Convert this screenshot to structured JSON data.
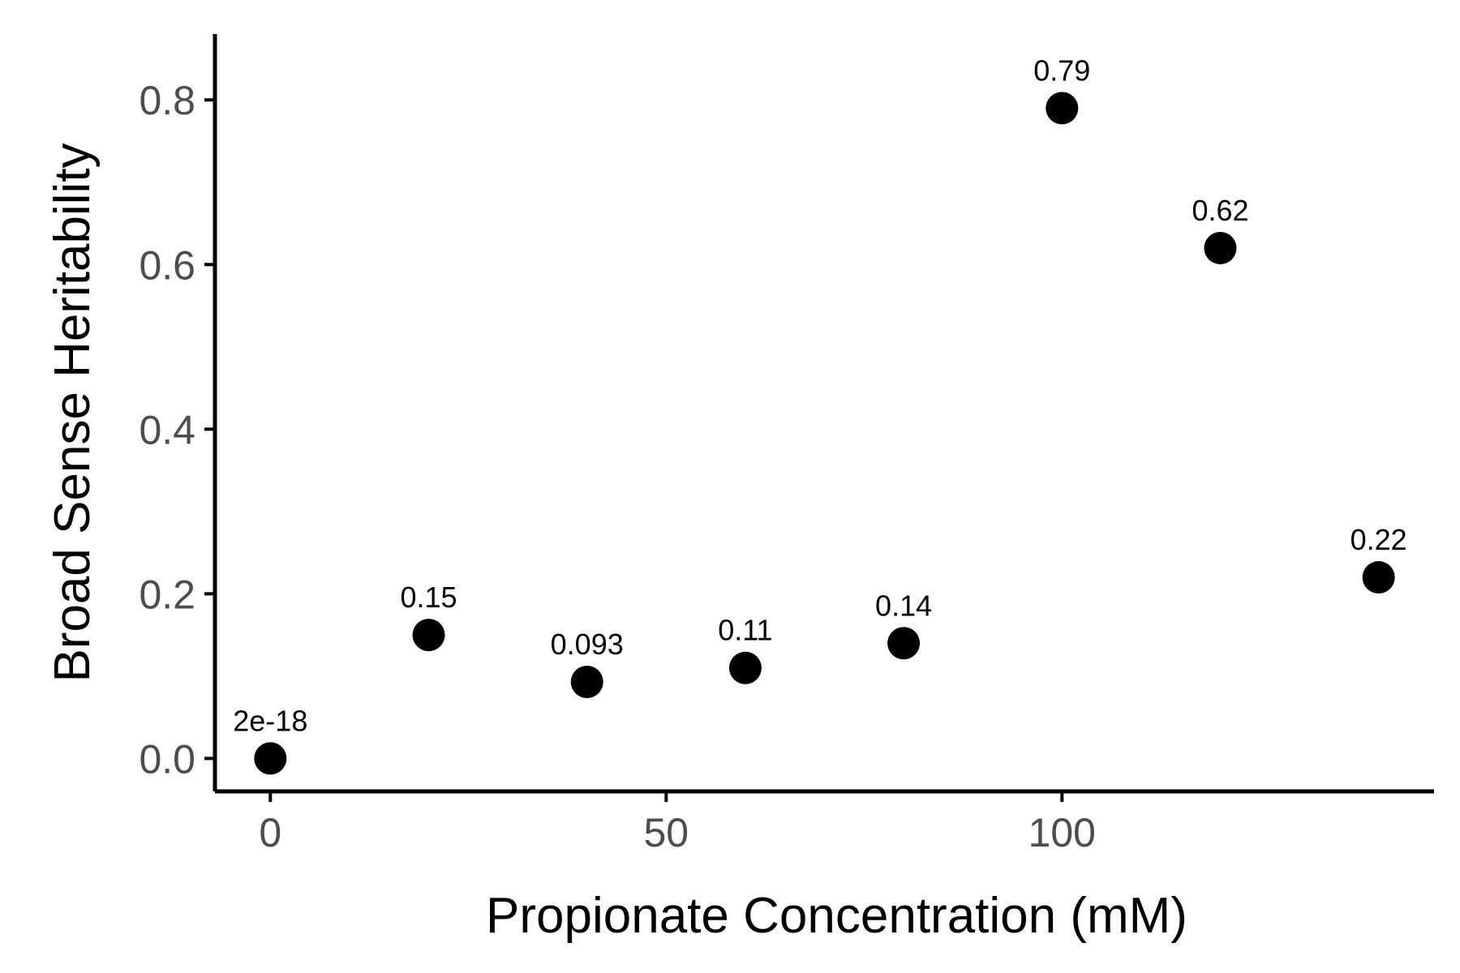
{
  "chart_data": {
    "type": "scatter",
    "title": "",
    "xlabel": "Propionate Concentration (mM)",
    "ylabel": "Broad Sense Heritability",
    "xlim": [
      -7,
      147
    ],
    "ylim": [
      -0.04,
      0.88
    ],
    "xticks": [
      0,
      50,
      100
    ],
    "xtick_labels": [
      "0",
      "50",
      "100"
    ],
    "yticks": [
      0.0,
      0.2,
      0.4,
      0.6,
      0.8
    ],
    "ytick_labels": [
      "0.0",
      "0.2",
      "0.4",
      "0.6",
      "0.8"
    ],
    "grid": false,
    "legend": "none",
    "point_color": "#000000",
    "points": [
      {
        "x": 0,
        "y": 0.0,
        "label": "2e-18"
      },
      {
        "x": 20,
        "y": 0.15,
        "label": "0.15"
      },
      {
        "x": 40,
        "y": 0.093,
        "label": "0.093"
      },
      {
        "x": 60,
        "y": 0.11,
        "label": "0.11"
      },
      {
        "x": 80,
        "y": 0.14,
        "label": "0.14"
      },
      {
        "x": 100,
        "y": 0.79,
        "label": "0.79"
      },
      {
        "x": 120,
        "y": 0.62,
        "label": "0.62"
      },
      {
        "x": 140,
        "y": 0.22,
        "label": "0.22"
      }
    ]
  }
}
